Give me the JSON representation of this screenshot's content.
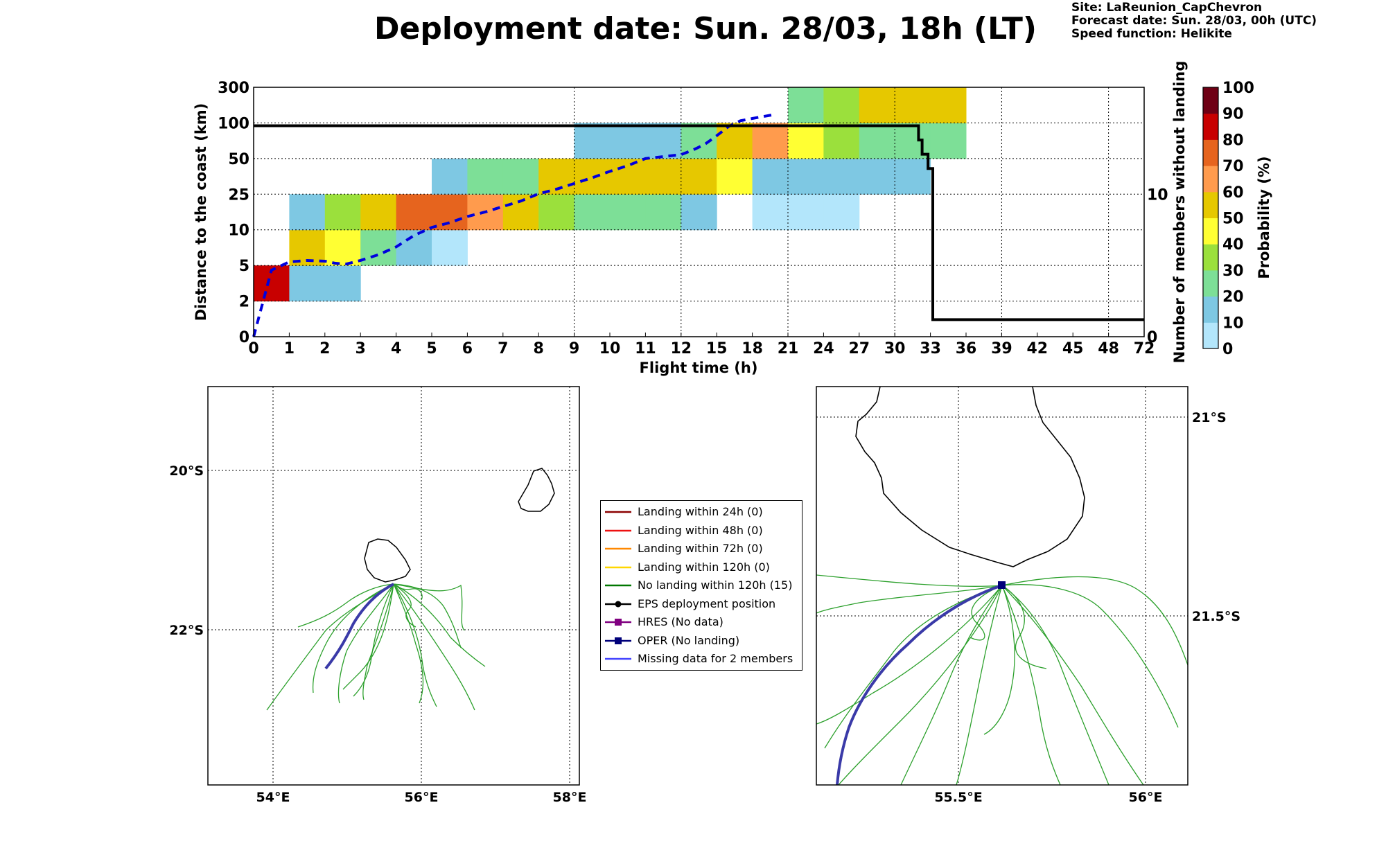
{
  "title": "Deployment date: Sun. 28/03, 18h (LT)",
  "info": {
    "site": "Site: LaReunion_CapChevron",
    "forecast": "Forecast date: Sun. 28/03, 00h (UTC)",
    "speed": "Speed function: Helikite"
  },
  "colors": {
    "blue_dashed": "#0000dd",
    "black_line": "#000000",
    "track_green": "#2ca02c",
    "oper": "#3a3aa8"
  },
  "chart_data": [
    {
      "type": "heatmap",
      "xlabel": "Flight time (h)",
      "ylabel": "Distance to the coast (km)",
      "y2label": "Number of members without landing",
      "x_ticks": [
        "0",
        "1",
        "2",
        "3",
        "4",
        "5",
        "6",
        "7",
        "8",
        "9",
        "10",
        "11",
        "12",
        "15",
        "18",
        "21",
        "24",
        "27",
        "30",
        "33",
        "36",
        "39",
        "42",
        "45",
        "48",
        "72"
      ],
      "y_ticks": [
        "0",
        "2",
        "5",
        "10",
        "25",
        "50",
        "100",
        "300"
      ],
      "y2_ticks": [
        "0",
        "10"
      ],
      "y2lim": [
        0,
        17.5
      ],
      "colorbar": {
        "label": "Probability (%)",
        "ticks": [
          "0",
          "10",
          "20",
          "30",
          "40",
          "50",
          "60",
          "70",
          "80",
          "90",
          "100"
        ],
        "colors": [
          "#b3e6fb",
          "#7ec8e3",
          "#7ddf97",
          "#9be03c",
          "#ffff33",
          "#e6c800",
          "#ff9b4d",
          "#e6641e",
          "#c80000",
          "#6e0014"
        ]
      },
      "grid": true,
      "cells": [
        {
          "x": 0,
          "y": 1,
          "p": 85
        },
        {
          "x": 1,
          "y": 1,
          "p": 15
        },
        {
          "x": 2,
          "y": 1,
          "p": 15
        },
        {
          "x": 1,
          "y": 2,
          "p": 55
        },
        {
          "x": 2,
          "y": 2,
          "p": 45
        },
        {
          "x": 3,
          "y": 2,
          "p": 25
        },
        {
          "x": 4,
          "y": 2,
          "p": 15
        },
        {
          "x": 5,
          "y": 2,
          "p": 5
        },
        {
          "x": 1,
          "y": 3,
          "p": 15
        },
        {
          "x": 2,
          "y": 3,
          "p": 35
        },
        {
          "x": 3,
          "y": 3,
          "p": 55
        },
        {
          "x": 4,
          "y": 3,
          "p": 75
        },
        {
          "x": 5,
          "y": 3,
          "p": 75
        },
        {
          "x": 6,
          "y": 3,
          "p": 65
        },
        {
          "x": 7,
          "y": 3,
          "p": 55
        },
        {
          "x": 8,
          "y": 3,
          "p": 35
        },
        {
          "x": 9,
          "y": 3,
          "p": 25
        },
        {
          "x": 10,
          "y": 3,
          "p": 25
        },
        {
          "x": 11,
          "y": 3,
          "p": 25
        },
        {
          "x": 12,
          "y": 3,
          "p": 15
        },
        {
          "x": 14,
          "y": 3,
          "p": 5
        },
        {
          "x": 15,
          "y": 3,
          "p": 5
        },
        {
          "x": 16,
          "y": 3,
          "p": 5
        },
        {
          "x": 5,
          "y": 4,
          "p": 15
        },
        {
          "x": 6,
          "y": 4,
          "p": 25
        },
        {
          "x": 7,
          "y": 4,
          "p": 25
        },
        {
          "x": 8,
          "y": 4,
          "p": 55
        },
        {
          "x": 9,
          "y": 4,
          "p": 55
        },
        {
          "x": 10,
          "y": 4,
          "p": 55
        },
        {
          "x": 11,
          "y": 4,
          "p": 55
        },
        {
          "x": 12,
          "y": 4,
          "p": 55
        },
        {
          "x": 13,
          "y": 4,
          "p": 45
        },
        {
          "x": 14,
          "y": 4,
          "p": 15
        },
        {
          "x": 15,
          "y": 4,
          "p": 15
        },
        {
          "x": 16,
          "y": 4,
          "p": 15
        },
        {
          "x": 17,
          "y": 4,
          "p": 15
        },
        {
          "x": 18,
          "y": 4,
          "p": 15
        },
        {
          "x": 9,
          "y": 5,
          "p": 15
        },
        {
          "x": 10,
          "y": 5,
          "p": 15
        },
        {
          "x": 11,
          "y": 5,
          "p": 15
        },
        {
          "x": 12,
          "y": 5,
          "p": 25
        },
        {
          "x": 13,
          "y": 5,
          "p": 55
        },
        {
          "x": 14,
          "y": 5,
          "p": 65
        },
        {
          "x": 15,
          "y": 5,
          "p": 45
        },
        {
          "x": 16,
          "y": 5,
          "p": 35
        },
        {
          "x": 17,
          "y": 5,
          "p": 25
        },
        {
          "x": 18,
          "y": 5,
          "p": 25
        },
        {
          "x": 19,
          "y": 5,
          "p": 25
        },
        {
          "x": 15,
          "y": 6,
          "p": 25
        },
        {
          "x": 16,
          "y": 6,
          "p": 35
        },
        {
          "x": 17,
          "y": 6,
          "p": 55
        },
        {
          "x": 18,
          "y": 6,
          "p": 55
        },
        {
          "x": 19,
          "y": 6,
          "p": 55
        }
      ],
      "median_distance_km": [
        [
          0,
          0
        ],
        [
          0.5,
          4.6
        ],
        [
          1,
          5.5
        ],
        [
          1.5,
          5.7
        ],
        [
          2,
          5.6
        ],
        [
          2.3,
          5.3
        ],
        [
          2.6,
          5.2
        ],
        [
          3,
          5.7
        ],
        [
          3.5,
          6.5
        ],
        [
          4,
          7.6
        ],
        [
          4.5,
          9.2
        ],
        [
          5,
          11
        ],
        [
          5.5,
          13
        ],
        [
          6,
          15.6
        ],
        [
          6.5,
          17.5
        ],
        [
          7,
          19.8
        ],
        [
          7.5,
          22.1
        ],
        [
          8,
          25.3
        ],
        [
          8.5,
          28.5
        ],
        [
          9,
          32.5
        ],
        [
          9.5,
          36.5
        ],
        [
          10,
          41
        ],
        [
          10.5,
          45
        ],
        [
          11,
          50
        ],
        [
          12,
          55.5
        ],
        [
          13,
          62
        ],
        [
          14,
          70
        ],
        [
          15,
          82
        ],
        [
          16,
          95
        ],
        [
          17,
          112
        ],
        [
          18,
          125
        ],
        [
          19,
          137
        ],
        [
          19.7,
          145
        ]
      ],
      "members_without_landing": [
        [
          0,
          14.8
        ],
        [
          32,
          14.8
        ],
        [
          32,
          13.8
        ],
        [
          32.3,
          13.8
        ],
        [
          32.3,
          12.8
        ],
        [
          32.8,
          12.8
        ],
        [
          32.8,
          11.8
        ],
        [
          33.2,
          11.8
        ],
        [
          33.2,
          1.2
        ],
        [
          72,
          1.2
        ]
      ]
    }
  ],
  "map_left": {
    "lon_ticks": [
      "54°E",
      "56°E",
      "58°E"
    ],
    "lat_ticks": [
      "20°S",
      "22°S"
    ]
  },
  "map_right": {
    "lon_ticks": [
      "55.5°E",
      "56°E"
    ],
    "lat_ticks": [
      "21°S",
      "21.5°S"
    ]
  },
  "legend": [
    {
      "label": "Landing within 24h (0)",
      "color": "#8b0000",
      "marker": "none"
    },
    {
      "label": "Landing within 48h (0)",
      "color": "#ee1111",
      "marker": "none"
    },
    {
      "label": "Landing within 72h (0)",
      "color": "#ff8800",
      "marker": "none"
    },
    {
      "label": "Landing within 120h (0)",
      "color": "#ffd700",
      "marker": "none"
    },
    {
      "label": "No landing within 120h (15)",
      "color": "#007700",
      "marker": "none"
    },
    {
      "label": "EPS deployment position",
      "color": "#000000",
      "marker": "circle"
    },
    {
      "label": "HRES (No data)",
      "color": "#800080",
      "marker": "square"
    },
    {
      "label": "OPER (No landing)",
      "color": "#00007a",
      "marker": "square"
    },
    {
      "label": "Missing data for 2 members",
      "color": "#4444ff",
      "marker": "none"
    }
  ]
}
